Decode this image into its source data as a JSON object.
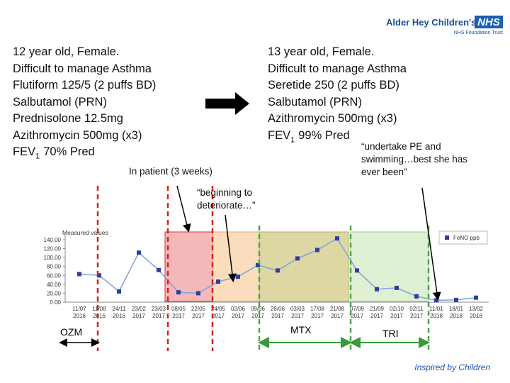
{
  "header": {
    "org": "Alder Hey Children's",
    "nhs": "NHS",
    "trust": "NHS Foundation Trust"
  },
  "before": {
    "lines": [
      "12 year old, Female.",
      "Difficult to manage Asthma",
      "Flutiform 125/5 (2 puffs BD)",
      "Salbutamol (PRN)",
      "Prednisolone 12.5mg",
      "Azithromycin 500mg (x3)"
    ],
    "fev": {
      "text": "FEV",
      "sub": "1",
      "rest": "70% Pred"
    }
  },
  "after": {
    "lines": [
      "13 year old, Female.",
      "Difficult to manage Asthma",
      "Seretide 250 (2 puffs BD)",
      "Salbutamol (PRN)",
      "Azithromycin 500mg (x3)"
    ],
    "fev": {
      "text": "FEV",
      "sub": "1",
      "rest": "99% Pred"
    }
  },
  "annotations": {
    "inpatient": "In patient (3 weeks)",
    "deteriorate": [
      "“beginning to",
      "deteriorate…”"
    ],
    "swimming": [
      "“undertake PE and",
      "swimming…best she has",
      "ever been”"
    ]
  },
  "treatments": {
    "ozm": "OZM",
    "mtx": "MTX",
    "tri": "TRI"
  },
  "footer": "Inspired by Children",
  "chart_data": {
    "type": "line",
    "ylabel": "Measured values",
    "categories": [
      [
        "11/07",
        "2016"
      ],
      [
        "11/08",
        "2016"
      ],
      [
        "24/11",
        "2016"
      ],
      [
        "23/02",
        "2017"
      ],
      [
        "23/03",
        "2017"
      ],
      [
        "08/05",
        "2017"
      ],
      [
        "22/05",
        "2017"
      ],
      [
        "24/05",
        "2017"
      ],
      [
        "02/06",
        "2017"
      ],
      [
        "09/06",
        "2017"
      ],
      [
        "28/06",
        "2017"
      ],
      [
        "03/03",
        "2017"
      ],
      [
        "17/08",
        "2017"
      ],
      [
        "21/08",
        "2017"
      ],
      [
        "07/09",
        "2017"
      ],
      [
        "21/09",
        "2017"
      ],
      [
        "02/10",
        "2017"
      ],
      [
        "02/11",
        "2017"
      ],
      [
        "11/01",
        "2018"
      ],
      [
        "18/01",
        "2018"
      ],
      [
        "13/02",
        "2018"
      ]
    ],
    "series": [
      {
        "name": "FeNO ppb",
        "color": "#7da3dc",
        "marker_color": "#2c3f9e",
        "values": [
          63,
          60,
          24,
          111,
          72,
          22,
          20,
          46,
          57,
          83,
          71,
          98,
          117,
          143,
          71,
          29,
          32,
          13,
          4,
          5,
          10
        ]
      }
    ],
    "ylim": [
      0,
      140
    ],
    "yticks": [
      {
        "value": 0,
        "label": "0.00"
      },
      {
        "value": 20,
        "label": "20.00"
      },
      {
        "value": 40,
        "label": "40.00"
      },
      {
        "value": 60,
        "label": "60.00"
      },
      {
        "value": 80,
        "label": "80.00"
      },
      {
        "value": 100,
        "label": "100.00"
      },
      {
        "value": 120,
        "label": "120.00"
      },
      {
        "value": 140,
        "label": "140.00"
      }
    ],
    "legend": "upper right"
  }
}
